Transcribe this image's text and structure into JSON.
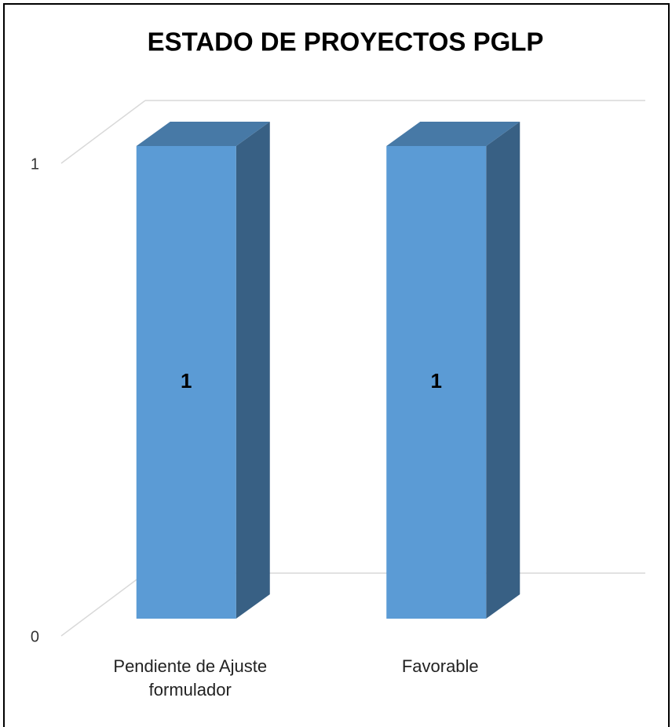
{
  "chart_data": {
    "type": "bar",
    "title": "ESTADO DE PROYECTOS PGLP",
    "categories": [
      "Pendiente de Ajuste formulador",
      "Favorable"
    ],
    "values": [
      1,
      1
    ],
    "color": "#5b9bd5",
    "ylim": [
      0,
      1
    ],
    "yticks": [
      0,
      1
    ],
    "grid": true
  }
}
